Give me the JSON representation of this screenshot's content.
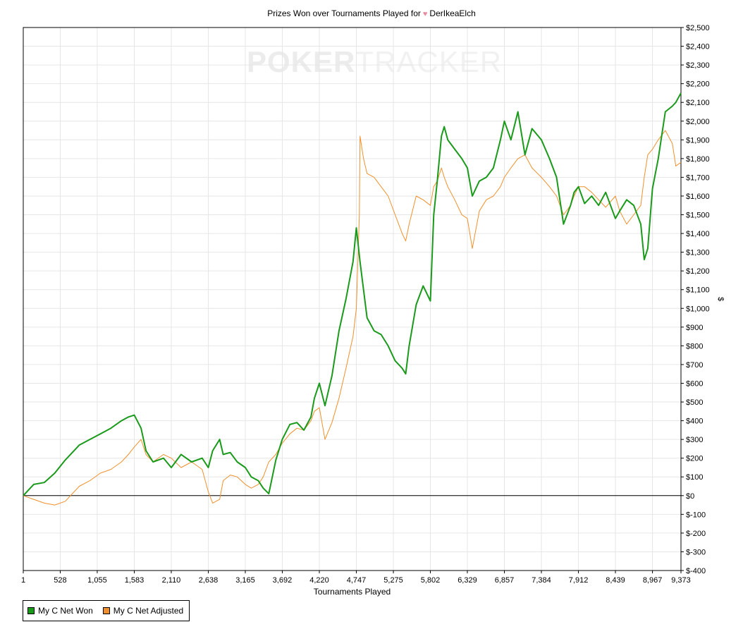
{
  "watermark": {
    "bold": "POKER",
    "light": "TRACKER"
  },
  "chart_data": {
    "type": "line",
    "title": "Prizes Won over Tournaments Played for",
    "player": "DerIkeaElch",
    "xlabel": "Tournaments Played",
    "ylabel": "$",
    "xlim": [
      1,
      9373
    ],
    "ylim": [
      -400,
      2500
    ],
    "x_ticks": [
      1,
      528,
      1055,
      1583,
      2110,
      2638,
      3165,
      3692,
      4220,
      4747,
      5275,
      5802,
      6329,
      6857,
      7384,
      7912,
      8439,
      8967,
      9373
    ],
    "x_tick_labels": [
      "1",
      "528",
      "1,055",
      "1,583",
      "2,110",
      "2,638",
      "3,165",
      "3,692",
      "4,220",
      "4,747",
      "5,275",
      "5,802",
      "6,329",
      "6,857",
      "7,384",
      "7,912",
      "8,439",
      "8,967",
      "9,373"
    ],
    "y_ticks": [
      -400,
      -300,
      -200,
      -100,
      0,
      100,
      200,
      300,
      400,
      500,
      600,
      700,
      800,
      900,
      1000,
      1100,
      1200,
      1300,
      1400,
      1500,
      1600,
      1700,
      1800,
      1900,
      2000,
      2100,
      2200,
      2300,
      2400,
      2500
    ],
    "y_tick_labels": [
      "$-400",
      "$-300",
      "$-200",
      "$-100",
      "$0",
      "$100",
      "$200",
      "$300",
      "$400",
      "$500",
      "$600",
      "$700",
      "$800",
      "$900",
      "$1,000",
      "$1,100",
      "$1,200",
      "$1,300",
      "$1,400",
      "$1,500",
      "$1,600",
      "$1,700",
      "$1,800",
      "$1,900",
      "$2,000",
      "$2,100",
      "$2,200",
      "$2,300",
      "$2,400",
      "$2,500"
    ],
    "grid": true,
    "legend_position": "bottom-left",
    "series": [
      {
        "name": "My C Net Won",
        "color": "#1a9a1a",
        "x": [
          1,
          150,
          300,
          450,
          600,
          800,
          950,
          1100,
          1250,
          1400,
          1500,
          1583,
          1680,
          1750,
          1850,
          2000,
          2110,
          2250,
          2400,
          2550,
          2638,
          2700,
          2800,
          2850,
          2950,
          3050,
          3165,
          3250,
          3350,
          3420,
          3500,
          3600,
          3692,
          3800,
          3900,
          4000,
          4100,
          4150,
          4220,
          4300,
          4400,
          4500,
          4600,
          4700,
          4747,
          4800,
          4850,
          4900,
          5000,
          5100,
          5200,
          5300,
          5400,
          5450,
          5500,
          5600,
          5700,
          5802,
          5850,
          5900,
          5960,
          6000,
          6050,
          6150,
          6250,
          6329,
          6400,
          6500,
          6600,
          6700,
          6800,
          6857,
          6950,
          7050,
          7150,
          7250,
          7384,
          7500,
          7600,
          7700,
          7800,
          7850,
          7912,
          8000,
          8100,
          8200,
          8300,
          8439,
          8500,
          8600,
          8700,
          8800,
          8850,
          8900,
          8967,
          9050,
          9150,
          9250,
          9300,
          9373
        ],
        "y": [
          0,
          60,
          70,
          120,
          190,
          270,
          300,
          330,
          360,
          400,
          420,
          430,
          360,
          240,
          180,
          200,
          150,
          220,
          180,
          200,
          150,
          240,
          300,
          220,
          230,
          180,
          150,
          100,
          80,
          40,
          10,
          190,
          300,
          380,
          390,
          350,
          420,
          520,
          600,
          480,
          640,
          880,
          1050,
          1250,
          1430,
          1250,
          1100,
          950,
          880,
          860,
          800,
          720,
          680,
          650,
          800,
          1020,
          1120,
          1040,
          1500,
          1680,
          1920,
          1970,
          1900,
          1850,
          1800,
          1750,
          1600,
          1680,
          1700,
          1750,
          1900,
          2000,
          1900,
          2050,
          1820,
          1960,
          1900,
          1800,
          1700,
          1450,
          1550,
          1620,
          1650,
          1560,
          1600,
          1550,
          1620,
          1480,
          1520,
          1580,
          1550,
          1450,
          1260,
          1320,
          1640,
          1800,
          2050,
          2080,
          2100,
          2150
        ]
      },
      {
        "name": "My C Net Adjusted",
        "color": "#f0902c",
        "x": [
          1,
          150,
          300,
          450,
          600,
          800,
          950,
          1100,
          1250,
          1400,
          1500,
          1583,
          1680,
          1750,
          1850,
          2000,
          2110,
          2250,
          2400,
          2550,
          2638,
          2700,
          2800,
          2850,
          2950,
          3050,
          3165,
          3250,
          3350,
          3420,
          3500,
          3600,
          3692,
          3800,
          3900,
          4000,
          4100,
          4150,
          4220,
          4300,
          4400,
          4500,
          4600,
          4700,
          4747,
          4790,
          4800,
          4850,
          4900,
          5000,
          5100,
          5200,
          5300,
          5400,
          5450,
          5500,
          5600,
          5700,
          5802,
          5850,
          5900,
          5960,
          6000,
          6050,
          6150,
          6250,
          6329,
          6400,
          6500,
          6600,
          6700,
          6800,
          6857,
          6950,
          7050,
          7150,
          7250,
          7384,
          7500,
          7600,
          7700,
          7800,
          7850,
          7912,
          8000,
          8100,
          8200,
          8300,
          8439,
          8500,
          8600,
          8700,
          8800,
          8850,
          8900,
          8967,
          9050,
          9150,
          9250,
          9300,
          9373
        ],
        "y": [
          0,
          -20,
          -40,
          -50,
          -30,
          50,
          80,
          120,
          140,
          180,
          220,
          260,
          300,
          220,
          180,
          220,
          200,
          150,
          180,
          140,
          20,
          -40,
          -20,
          80,
          110,
          100,
          60,
          40,
          60,
          100,
          180,
          220,
          280,
          330,
          360,
          350,
          400,
          450,
          470,
          300,
          390,
          520,
          680,
          850,
          1000,
          1500,
          1920,
          1800,
          1720,
          1700,
          1650,
          1600,
          1500,
          1400,
          1360,
          1450,
          1600,
          1580,
          1550,
          1650,
          1680,
          1750,
          1700,
          1650,
          1580,
          1500,
          1480,
          1320,
          1520,
          1580,
          1600,
          1650,
          1700,
          1750,
          1800,
          1820,
          1750,
          1700,
          1650,
          1600,
          1500,
          1550,
          1600,
          1650,
          1650,
          1620,
          1580,
          1540,
          1600,
          1520,
          1450,
          1500,
          1550,
          1700,
          1820,
          1850,
          1900,
          1950,
          1880,
          1760,
          1780
        ]
      }
    ]
  }
}
